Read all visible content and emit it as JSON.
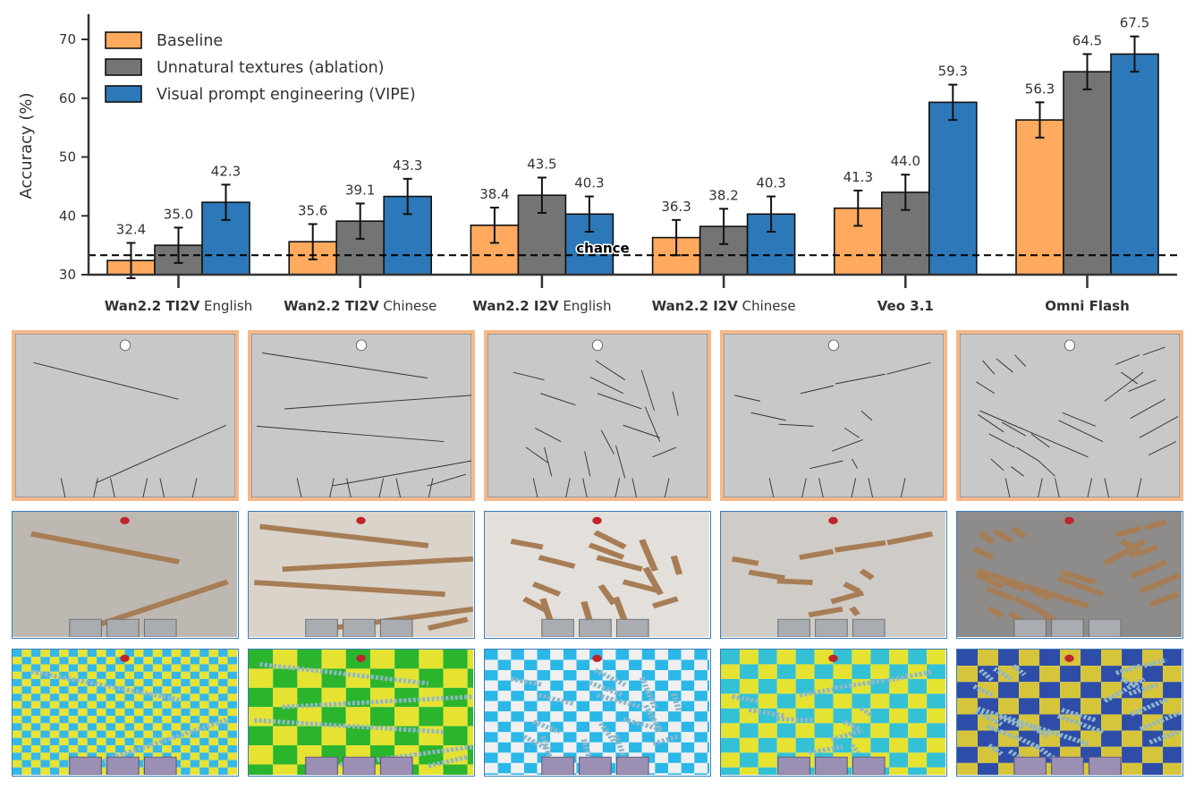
{
  "chart_data": {
    "type": "bar",
    "ylabel": "Accuracy (%)",
    "xlabel": "",
    "ylim": [
      30,
      74
    ],
    "yticks": [
      30,
      40,
      50,
      60,
      70
    ],
    "grid": false,
    "legend_position": "top-left",
    "categories": [
      {
        "bold": "Wan2.2 TI2V",
        "rest": "English"
      },
      {
        "bold": "Wan2.2 TI2V",
        "rest": "Chinese"
      },
      {
        "bold": "Wan2.2 I2V",
        "rest": "English"
      },
      {
        "bold": "Wan2.2 I2V",
        "rest": "Chinese"
      },
      {
        "bold": "Veo 3.1",
        "rest": ""
      },
      {
        "bold": "Omni Flash",
        "rest": ""
      }
    ],
    "series": [
      {
        "name": "Baseline",
        "color": "#FFAA5E",
        "values": [
          32.4,
          35.6,
          38.4,
          36.3,
          41.3,
          56.3
        ],
        "labels": [
          "32.4",
          "35.6",
          "38.4",
          "36.3",
          "41.3",
          "56.3"
        ],
        "error": [
          3.0,
          3.0,
          3.0,
          3.0,
          3.0,
          3.0
        ]
      },
      {
        "name": "Unnatural textures (ablation)",
        "color": "#747474",
        "values": [
          35.0,
          39.1,
          43.5,
          38.2,
          44.0,
          64.5
        ],
        "labels": [
          "35.0",
          "39.1",
          "43.5",
          "38.2",
          "44.0",
          "64.5"
        ],
        "error": [
          3.0,
          3.0,
          3.0,
          3.0,
          3.0,
          3.0
        ]
      },
      {
        "name": "Visual prompt engineering (VIPE)",
        "color": "#2D78B8",
        "values": [
          42.3,
          43.3,
          40.3,
          40.3,
          59.3,
          67.5
        ],
        "labels": [
          "42.3",
          "43.3",
          "40.3",
          "40.3",
          "59.3",
          "67.5"
        ],
        "error": [
          3.0,
          3.0,
          3.0,
          3.0,
          3.0,
          3.0
        ]
      }
    ],
    "reference_line": {
      "value": 33.3,
      "label": "chance"
    }
  },
  "thumbnails": {
    "row_styles": [
      {
        "kind": "schematic",
        "border": "#F5B889",
        "bg": "#C8C8C8"
      },
      {
        "kind": "photo",
        "border": "#3A7DB8"
      },
      {
        "kind": "checker",
        "border": "#3A7DB8"
      }
    ],
    "columns": 5
  }
}
